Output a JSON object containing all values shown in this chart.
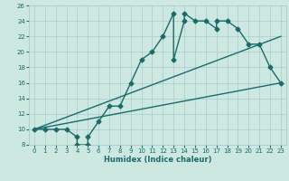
{
  "title": "",
  "xlabel": "Humidex (Indice chaleur)",
  "bg_color": "#cce8e0",
  "grid_color": "#aacccc",
  "line_color": "#1a6b6b",
  "xlim": [
    -0.5,
    23.5
  ],
  "ylim": [
    8,
    26
  ],
  "xticks": [
    0,
    1,
    2,
    3,
    4,
    5,
    6,
    7,
    8,
    9,
    10,
    11,
    12,
    13,
    14,
    15,
    16,
    17,
    18,
    19,
    20,
    21,
    22,
    23
  ],
  "yticks": [
    8,
    10,
    12,
    14,
    16,
    18,
    20,
    22,
    24,
    26
  ],
  "main_x": [
    0,
    1,
    2,
    3,
    4,
    4,
    5,
    5,
    6,
    7,
    8,
    9,
    10,
    11,
    12,
    13,
    13,
    14,
    14,
    15,
    16,
    17,
    17,
    18,
    19,
    20,
    21,
    22,
    23
  ],
  "main_y": [
    10,
    10,
    10,
    10,
    9,
    8,
    8,
    9,
    11,
    13,
    13,
    16,
    19,
    20,
    22,
    25,
    19,
    24,
    25,
    24,
    24,
    23,
    24,
    24,
    23,
    21,
    21,
    18,
    16
  ],
  "line2_x": [
    0,
    23
  ],
  "line2_y": [
    10,
    22
  ],
  "line3_x": [
    0,
    23
  ],
  "line3_y": [
    10,
    16
  ],
  "marker": "D",
  "marker_size": 2.5,
  "line_width": 1.0,
  "xlabel_fontsize": 6.0,
  "tick_fontsize": 5.0
}
